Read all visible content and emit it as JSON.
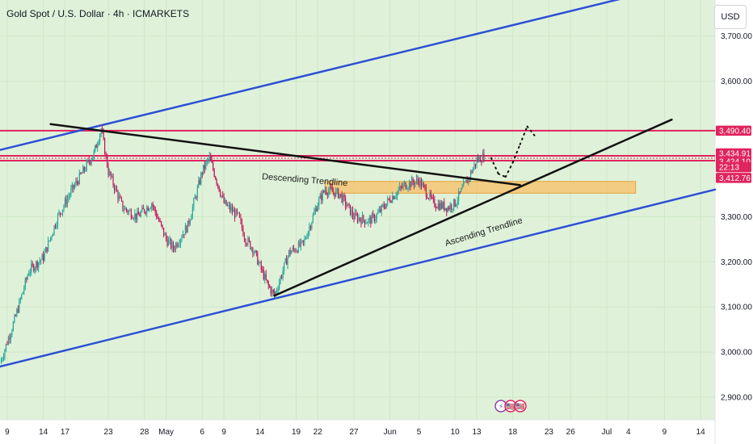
{
  "header": {
    "title": "Gold Spot / U.S. Dollar · 4h · ICMARKETS",
    "currency_button": "USD"
  },
  "colors": {
    "background": "#dff2d9",
    "bull": "#26a69a",
    "bear": "#c2185b",
    "channel": "#2e4fd6",
    "trendline": "#111111",
    "resistance": "#e0245e",
    "support_zone": "#f6c26b"
  },
  "price_tags": [
    {
      "label": "3,490.40",
      "value": 3490.4,
      "color": "#e0245e"
    },
    {
      "label": "3,434.91",
      "value": 3434.91,
      "color": "#e0245e"
    },
    {
      "label": "3,424.10",
      "value": 3424.1,
      "color": "#e0245e"
    },
    {
      "label": "22:13",
      "value": 3418.5,
      "color": "#e0245e"
    },
    {
      "label": "3,412.76",
      "value": 3412.76,
      "color": "#e0245e"
    }
  ],
  "annotations": [
    {
      "text": "Descending Trendline"
    },
    {
      "text": "Ascending Trendline"
    }
  ],
  "event_icons": [
    {
      "name": "lightning-event-icon",
      "symbol": "⚡",
      "color": "#8e44ad"
    },
    {
      "name": "us-flag-event-icon",
      "symbol": "🇺🇸",
      "color": "#e0245e"
    },
    {
      "name": "us-flag-event-icon-2",
      "symbol": "🇺🇸",
      "color": "#e0245e"
    }
  ],
  "chart_data": {
    "type": "candlestick",
    "title": "Gold Spot / U.S. Dollar · 4h · ICMARKETS",
    "y_ticks": [
      {
        "label": "3,700.00",
        "value": 3700
      },
      {
        "label": "3,600.00",
        "value": 3600
      },
      {
        "label": "3,300.00",
        "value": 3300
      },
      {
        "label": "3,200.00",
        "value": 3200
      },
      {
        "label": "3,100.00",
        "value": 3100
      },
      {
        "label": "3,000.00",
        "value": 3000
      },
      {
        "label": "2,900.00",
        "value": 2900
      }
    ],
    "x_ticks": [
      {
        "label": "9",
        "date": "2025-04-09"
      },
      {
        "label": "14",
        "date": "2025-04-14"
      },
      {
        "label": "17",
        "date": "2025-04-17"
      },
      {
        "label": "23",
        "date": "2025-04-23"
      },
      {
        "label": "28",
        "date": "2025-04-28"
      },
      {
        "label": "May",
        "date": "2025-05-01"
      },
      {
        "label": "6",
        "date": "2025-05-06"
      },
      {
        "label": "9",
        "date": "2025-05-09"
      },
      {
        "label": "14",
        "date": "2025-05-14"
      },
      {
        "label": "19",
        "date": "2025-05-19"
      },
      {
        "label": "22",
        "date": "2025-05-22"
      },
      {
        "label": "27",
        "date": "2025-05-27"
      },
      {
        "label": "Jun",
        "date": "2025-06-01"
      },
      {
        "label": "5",
        "date": "2025-06-05"
      },
      {
        "label": "10",
        "date": "2025-06-10"
      },
      {
        "label": "13",
        "date": "2025-06-13"
      },
      {
        "label": "18",
        "date": "2025-06-18"
      },
      {
        "label": "23",
        "date": "2025-06-23"
      },
      {
        "label": "26",
        "date": "2025-06-26"
      },
      {
        "label": "Jul",
        "date": "2025-07-01"
      },
      {
        "label": "4",
        "date": "2025-07-04"
      },
      {
        "label": "9",
        "date": "2025-07-09"
      },
      {
        "label": "14",
        "date": "2025-07-14"
      }
    ],
    "y_range": [
      2850,
      3780
    ],
    "x_range": [
      "2025-04-08",
      "2025-07-16"
    ],
    "price_path": [
      [
        "2025-04-08",
        2975
      ],
      [
        "2025-04-10",
        3070
      ],
      [
        "2025-04-12",
        3180
      ],
      [
        "2025-04-14",
        3210
      ],
      [
        "2025-04-16",
        3300
      ],
      [
        "2025-04-18",
        3360
      ],
      [
        "2025-04-21",
        3440
      ],
      [
        "2025-04-22",
        3495
      ],
      [
        "2025-04-23",
        3400
      ],
      [
        "2025-04-25",
        3320
      ],
      [
        "2025-04-27",
        3300
      ],
      [
        "2025-04-29",
        3330
      ],
      [
        "2025-05-01",
        3250
      ],
      [
        "2025-05-02",
        3230
      ],
      [
        "2025-05-04",
        3280
      ],
      [
        "2025-05-06",
        3400
      ],
      [
        "2025-05-07",
        3430
      ],
      [
        "2025-05-08",
        3380
      ],
      [
        "2025-05-09",
        3330
      ],
      [
        "2025-05-11",
        3300
      ],
      [
        "2025-05-12",
        3250
      ],
      [
        "2025-05-13",
        3230
      ],
      [
        "2025-05-15",
        3150
      ],
      [
        "2025-05-16",
        3125
      ],
      [
        "2025-05-18",
        3220
      ],
      [
        "2025-05-20",
        3240
      ],
      [
        "2025-05-22",
        3330
      ],
      [
        "2025-05-23",
        3360
      ],
      [
        "2025-05-25",
        3350
      ],
      [
        "2025-05-27",
        3300
      ],
      [
        "2025-05-29",
        3290
      ],
      [
        "2025-05-30",
        3300
      ],
      [
        "2025-06-01",
        3340
      ],
      [
        "2025-06-03",
        3370
      ],
      [
        "2025-06-05",
        3380
      ],
      [
        "2025-06-07",
        3330
      ],
      [
        "2025-06-09",
        3320
      ],
      [
        "2025-06-10",
        3330
      ],
      [
        "2025-06-12",
        3390
      ],
      [
        "2025-06-13",
        3425
      ],
      [
        "2025-06-14",
        3434
      ]
    ],
    "projection_path": [
      [
        "2025-06-15",
        3430
      ],
      [
        "2025-06-16",
        3395
      ],
      [
        "2025-06-17",
        3388
      ],
      [
        "2025-06-18",
        3420
      ],
      [
        "2025-06-19",
        3460
      ],
      [
        "2025-06-20",
        3500
      ],
      [
        "2025-06-21",
        3480
      ]
    ],
    "channel_upper": [
      [
        "2025-04-06",
        3440
      ],
      [
        "2025-07-10",
        3810
      ]
    ],
    "channel_lower": [
      [
        "2025-04-06",
        2960
      ],
      [
        "2025-07-16",
        3360
      ]
    ],
    "descending_trendline": [
      [
        "2025-04-15",
        3505
      ],
      [
        "2025-06-19",
        3370
      ]
    ],
    "ascending_trendline": [
      [
        "2025-05-16",
        3125
      ],
      [
        "2025-07-10",
        3515
      ]
    ],
    "resistance_levels": [
      3490.4,
      3434.91,
      3424.1
    ],
    "support_zone": {
      "from": "2025-05-23",
      "to": "2025-07-05",
      "low": 3352,
      "high": 3378
    }
  }
}
